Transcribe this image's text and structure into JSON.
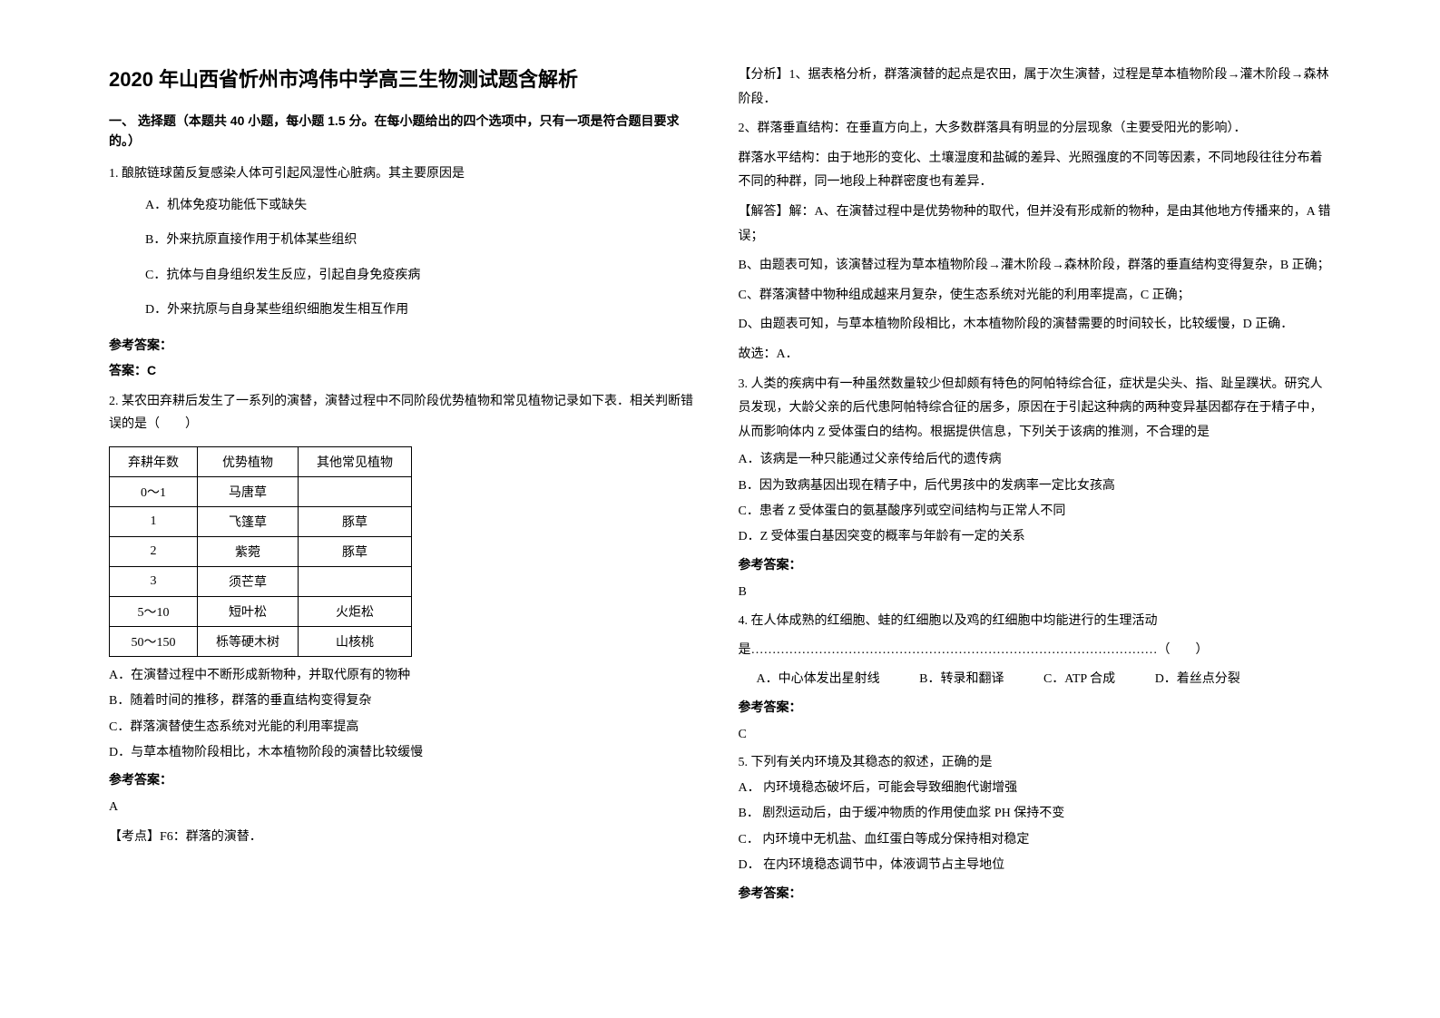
{
  "title": "2020 年山西省忻州市鸿伟中学高三生物测试题含解析",
  "section_header": "一、 选择题（本题共 40 小题，每小题 1.5 分。在每小题给出的四个选项中，只有一项是符合题目要求的。）",
  "q1": {
    "text": "1. 酿脓链球菌反复感染人体可引起风湿性心脏病。其主要原因是",
    "a": "A．机体免疫功能低下或缺失",
    "b": "B．外来抗原直接作用于机体某些组织",
    "c": "C．抗体与自身组织发生反应，引起自身免疫疾病",
    "d": "D．外来抗原与自身某些组织细胞发生相互作用",
    "ref_label": "参考答案：",
    "answer": "答案：C"
  },
  "q2": {
    "text": "2. 某农田弃耕后发生了一系列的演替，演替过程中不同阶段优势植物和常见植物记录如下表．相关判断错误的是（　　）",
    "headers": [
      "弃耕年数",
      "优势植物",
      "其他常见植物"
    ],
    "rows": [
      [
        "0～1",
        "马唐草",
        ""
      ],
      [
        "1",
        "飞篷草",
        "豚草"
      ],
      [
        "2",
        "紫菀",
        "豚草"
      ],
      [
        "3",
        "须芒草",
        ""
      ],
      [
        "5～10",
        "短叶松",
        "火炬松"
      ],
      [
        "50～150",
        "栎等硬木树",
        "山核桃"
      ]
    ],
    "a": "A．在演替过程中不断形成新物种，并取代原有的物种",
    "b": "B．随着时间的推移，群落的垂直结构变得复杂",
    "c": "C．群落演替使生态系统对光能的利用率提高",
    "d": "D．与草本植物阶段相比，木本植物阶段的演替比较缓慢",
    "ref_label": "参考答案：",
    "answer": "A",
    "exam_point": "【考点】F6：群落的演替．"
  },
  "right": {
    "analysis_1": "【分析】1、据表格分析，群落演替的起点是农田，属于次生演替，过程是草本植物阶段→灌木阶段→森林阶段．",
    "analysis_2": "2、群落垂直结构：在垂直方向上，大多数群落具有明显的分层现象（主要受阳光的影响）．",
    "analysis_3": "群落水平结构：由于地形的变化、土壤湿度和盐碱的差异、光照强度的不同等因素，不同地段往往分布着不同的种群，同一地段上种群密度也有差异．",
    "solve_1": "【解答】解：A、在演替过程中是优势物种的取代，但并没有形成新的物种，是由其他地方传播来的，A 错误；",
    "solve_2": "B、由题表可知，该演替过程为草本植物阶段→灌木阶段→森林阶段，群落的垂直结构变得复杂，B 正确；",
    "solve_3": "C、群落演替中物种组成越来月复杂，使生态系统对光能的利用率提高，C 正确；",
    "solve_4": "D、由题表可知，与草本植物阶段相比，木本植物阶段的演替需要的时间较长，比较缓慢，D 正确．",
    "solve_5": "故选：A．",
    "q3": {
      "text": "3. 人类的疾病中有一种虽然数量较少但却颇有特色的阿帕特综合征，症状是尖头、指、趾呈蹼状。研究人员发现，大龄父亲的后代患阿帕特综合征的居多，原因在于引起这种病的两种变异基因都存在于精子中，从而影响体内 Z 受体蛋白的结构。根据提供信息，下列关于该病的推测，不合理的是",
      "a": "A．该病是一种只能通过父亲传给后代的遗传病",
      "b": "B．因为致病基因出现在精子中，后代男孩中的发病率一定比女孩高",
      "c": "C．患者 Z 受体蛋白的氨基酸序列或空间结构与正常人不同",
      "d": "D．Z 受体蛋白基因突变的概率与年龄有一定的关系",
      "ref_label": "参考答案：",
      "answer": "B"
    },
    "q4": {
      "text": "4. 在人体成熟的红细胞、蛙的红细胞以及鸡的红细胞中均能进行的生理活动",
      "dotted": "是……………………………………………………………………………………（　　）",
      "a": "A．中心体发出星射线",
      "b": "B．转录和翻译",
      "c": "C．ATP 合成",
      "d": "D．着丝点分裂",
      "ref_label": "参考答案：",
      "answer": "C"
    },
    "q5": {
      "text": "5. 下列有关内环境及其稳态的叙述，正确的是",
      "a": "A． 内环境稳态破坏后，可能会导致细胞代谢增强",
      "b": "B． 剧烈运动后，由于缓冲物质的作用使血浆 PH 保持不变",
      "c": "C． 内环境中无机盐、血红蛋白等成分保持相对稳定",
      "d": "D． 在内环境稳态调节中，体液调节占主导地位",
      "ref_label": "参考答案："
    }
  }
}
